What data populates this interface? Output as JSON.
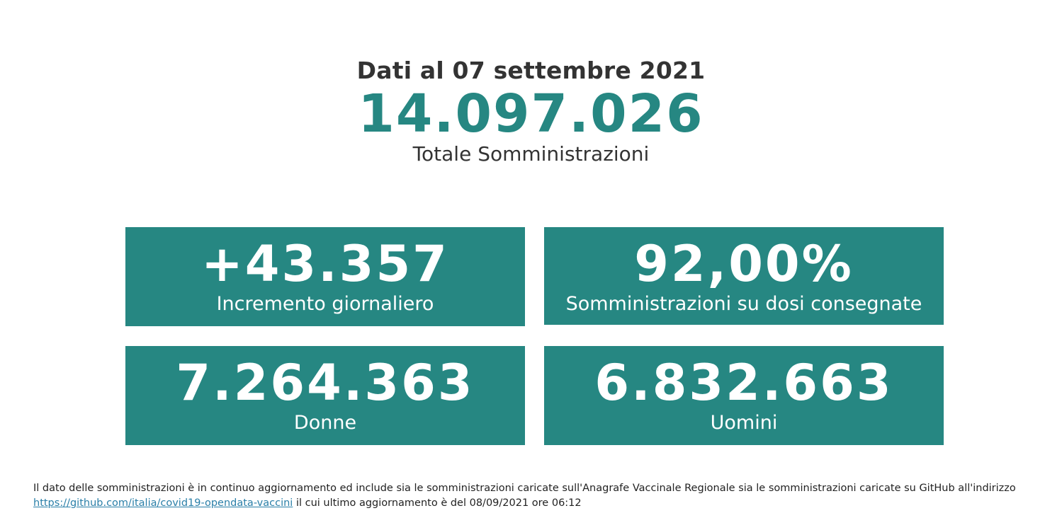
{
  "theme": {
    "accent": "#268782",
    "text": "#333333",
    "link": "#2a7fa8"
  },
  "header": {
    "date_line": "Dati al 07 settembre 2021",
    "total_value": "14.097.026",
    "total_label": "Totale Somministrazioni"
  },
  "cards": [
    {
      "value": "+43.357",
      "label": "Incremento giornaliero"
    },
    {
      "value": "92,00%",
      "label": "Somministrazioni su dosi consegnate"
    },
    {
      "value": "7.264.363",
      "label": "Donne"
    },
    {
      "value": "6.832.663",
      "label": "Uomini"
    }
  ],
  "footnote": {
    "text_before": "Il dato delle somministrazioni è in continuo aggiornamento ed include sia le somministrazioni caricate sull'Anagrafe Vaccinale Regionale sia le somministrazioni caricate su GitHub all'indirizzo",
    "link_text": "https://github.com/italia/covid19-opendata-vaccini",
    "text_after": "il cui ultimo aggiornamento è del 08/09/2021 ore 06:12"
  }
}
